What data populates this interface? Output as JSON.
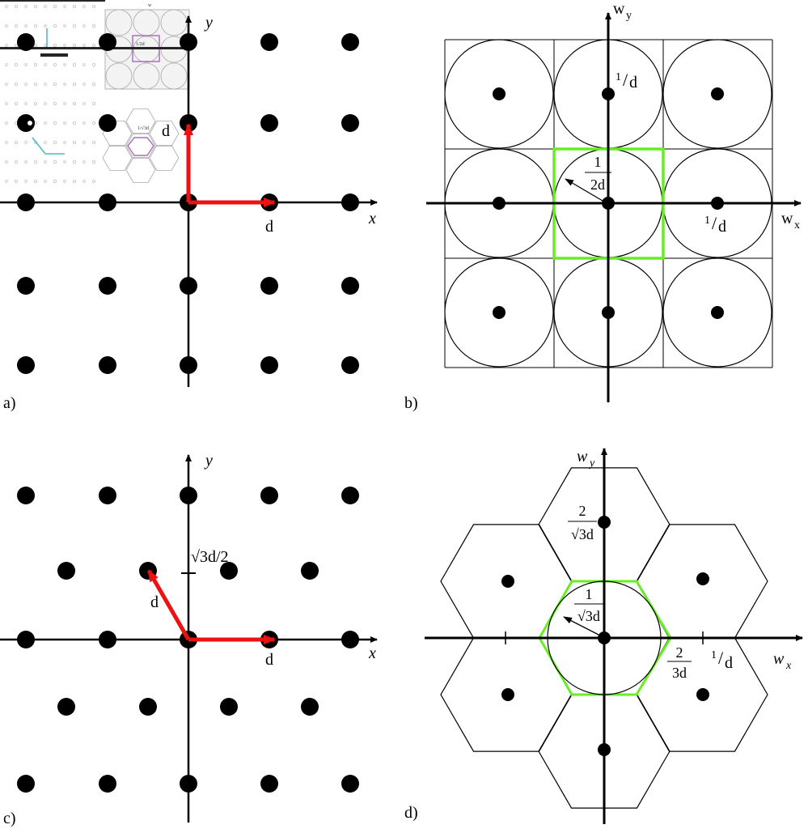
{
  "panels": {
    "a": {
      "tag": "a)",
      "x_axis": "x",
      "y_axis": "y",
      "vec_x_label": "d",
      "vec_y_label": "d",
      "inset_top_label": "w",
      "inset_cell_label": "1/2d",
      "inset_hex_label": "1/√3d"
    },
    "b": {
      "tag": "b)",
      "x_axis_main": "w",
      "x_axis_sub": "x",
      "y_axis_main": "w",
      "y_axis_sub": "y",
      "y_point_num": "1",
      "y_point_den": "d",
      "x_point_num": "1",
      "x_point_den": "d",
      "radius_num": "1",
      "radius_den": "2d"
    },
    "c": {
      "tag": "c)",
      "x_axis": "x",
      "y_axis": "y",
      "vec_x_label": "d",
      "vec_diag_label": "d",
      "tick_label": "√3d/2"
    },
    "d": {
      "tag": "d)",
      "x_axis_main": "w",
      "x_axis_sub": "x",
      "y_axis_main": "w",
      "y_axis_sub": "y",
      "y_point_num": "2",
      "y_point_den": "√3d",
      "radius_num": "1",
      "radius_den": "√3d",
      "x_tick_num": "2",
      "x_tick_den": "3d",
      "x_point_num": "1",
      "x_point_den": "d"
    }
  },
  "colors": {
    "vector": "#ee1111",
    "cell": "#66ee22",
    "ink": "#000000",
    "inset_line": "#999999",
    "inset_vector": "#2ab3b3",
    "inset_cell": "#9b59b6"
  }
}
